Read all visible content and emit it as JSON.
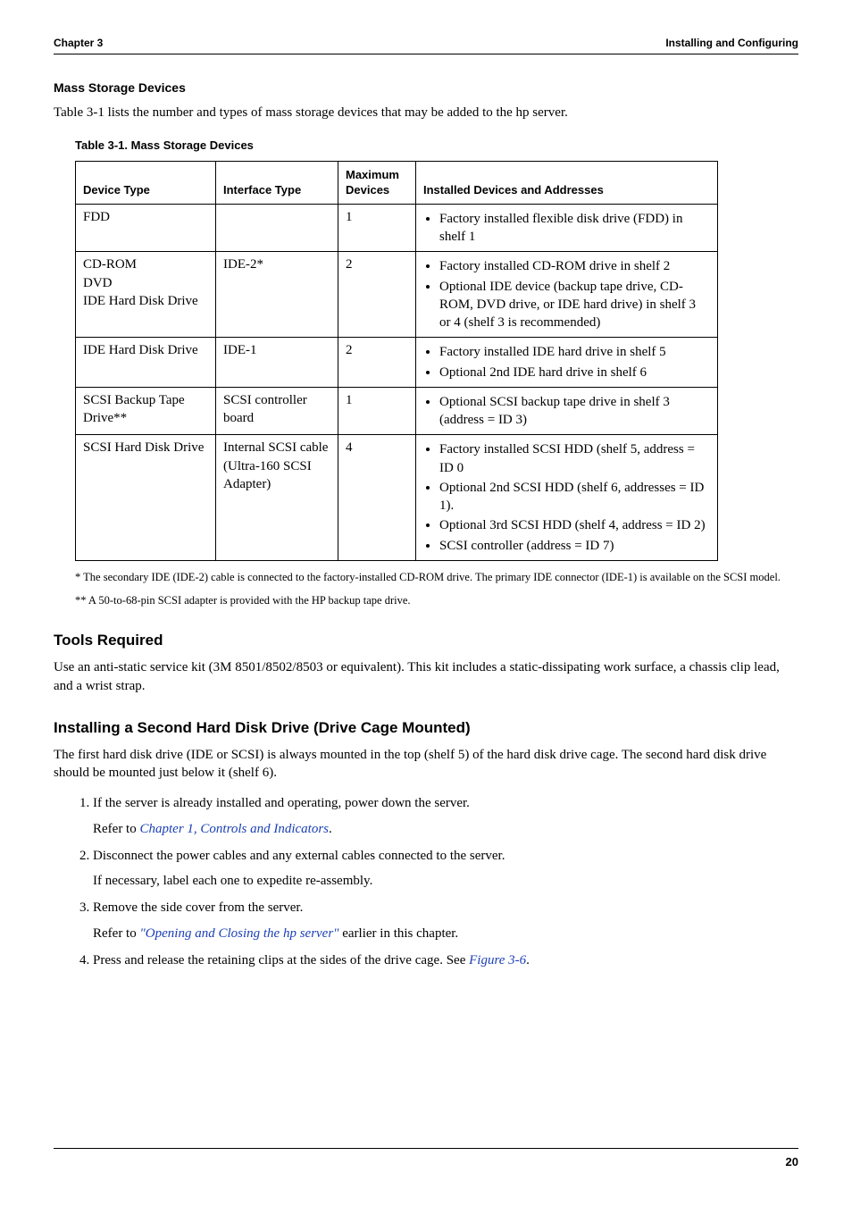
{
  "header": {
    "left": "Chapter 3",
    "right": "Installing and Configuring"
  },
  "mass_storage": {
    "title": "Mass Storage Devices",
    "intro": "Table 3-1 lists the number and types of mass storage devices that may be added to the hp server.",
    "table_caption": "Table 3-1.  Mass Storage Devices",
    "columns": {
      "c1": "Device Type",
      "c2": "Interface Type",
      "c3": "Maximum Devices",
      "c4": "Installed Devices and Addresses"
    },
    "rows": {
      "r1": {
        "device": "FDD",
        "iface": "",
        "max": "1",
        "items": {
          "i1": "Factory installed flexible disk drive (FDD) in shelf 1"
        }
      },
      "r2": {
        "device": "CD-ROM\nDVD\nIDE Hard Disk Drive",
        "iface": "IDE-2*",
        "max": "2",
        "items": {
          "i1": "Factory installed CD-ROM drive in shelf 2",
          "i2": "Optional IDE device (backup tape drive, CD-ROM, DVD drive, or IDE hard drive) in shelf 3 or 4 (shelf 3 is recommended)"
        }
      },
      "r3": {
        "device": "IDE Hard Disk Drive",
        "iface": "IDE-1",
        "max": "2",
        "items": {
          "i1": "Factory installed IDE hard drive in shelf 5",
          "i2": "Optional 2nd IDE hard drive in shelf 6"
        }
      },
      "r4": {
        "device": "SCSI Backup Tape Drive**",
        "iface": "SCSI controller board",
        "max": "1",
        "items": {
          "i1": "Optional SCSI backup tape drive in shelf 3 (address = ID 3)"
        }
      },
      "r5": {
        "device": "SCSI Hard Disk Drive",
        "iface": "Internal SCSI cable (Ultra-160 SCSI Adapter)",
        "max": "4",
        "items": {
          "i1": "Factory installed SCSI HDD (shelf 5, address = ID 0",
          "i2": "Optional 2nd SCSI HDD (shelf 6, addresses = ID 1).",
          "i3": "Optional 3rd SCSI HDD (shelf 4, address = ID 2)",
          "i4": "SCSI controller (address = ID 7)"
        }
      }
    },
    "footnote1": "* The secondary IDE (IDE-2) cable is connected to the factory-installed CD-ROM drive. The primary IDE connector (IDE-1) is available on the SCSI model.",
    "footnote2": "** A 50-to-68-pin SCSI adapter is provided with the HP backup tape drive."
  },
  "tools": {
    "heading": "Tools Required",
    "text": "Use an anti-static service kit (3M 8501/8502/8503 or equivalent). This kit includes a static-dissipating work surface, a chassis clip lead, and a wrist strap."
  },
  "install": {
    "heading": "Installing a Second Hard Disk Drive (Drive Cage Mounted)",
    "intro": "The first hard disk drive (IDE or SCSI) is always mounted in the top (shelf 5) of the hard disk drive cage. The second hard disk drive should be mounted just below it (shelf 6).",
    "steps": {
      "s1a": "If the server is already installed and operating, power down the server.",
      "s1b_pre": "Refer to ",
      "s1b_link": "Chapter 1, Controls and Indicators",
      "s1b_post": ".",
      "s2a": "Disconnect the power cables and any external cables connected to the server.",
      "s2b": "If necessary, label each one to expedite re-assembly.",
      "s3a": "Remove the side cover from the server.",
      "s3b_pre": "Refer to ",
      "s3b_link": "\"Opening and Closing the hp server\"",
      "s3b_post": "  earlier in this chapter.",
      "s4a_pre": "Press and release the retaining clips at the sides of the drive cage. See ",
      "s4a_link": "Figure 3-6",
      "s4a_post": "."
    }
  },
  "page_number": "20"
}
